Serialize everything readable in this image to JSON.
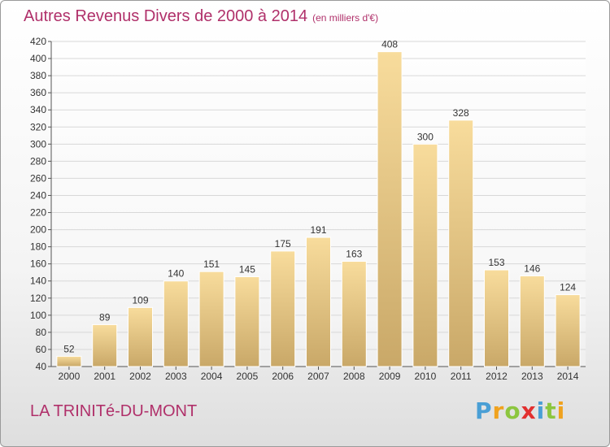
{
  "title": "Autres Revenus Divers de 2000 à 2014",
  "title_unit": "(en milliers d'€)",
  "location": "LA TRINITé-DU-MONT",
  "logo": {
    "letters": [
      "P",
      "r",
      "o",
      "x",
      "i",
      "t",
      "i"
    ],
    "colors": [
      "#4a9fd5",
      "#f0a21e",
      "#8cc63f",
      "#e2302f",
      "#4a9fd5",
      "#8cc63f",
      "#f0a21e"
    ]
  },
  "colors": {
    "title": "#b0306a",
    "bar_light": "#f8dc9c",
    "bar_dark": "#c9a868",
    "grid": "#d8d8d8"
  },
  "chart_data": {
    "type": "bar",
    "categories": [
      "2000",
      "2001",
      "2002",
      "2003",
      "2004",
      "2005",
      "2006",
      "2007",
      "2008",
      "2009",
      "2010",
      "2011",
      "2012",
      "2013",
      "2014"
    ],
    "values": [
      52,
      89,
      109,
      140,
      151,
      145,
      175,
      191,
      163,
      408,
      300,
      328,
      153,
      146,
      124
    ],
    "ylim": [
      40,
      420
    ],
    "ytick_step": 20,
    "grid": true
  }
}
